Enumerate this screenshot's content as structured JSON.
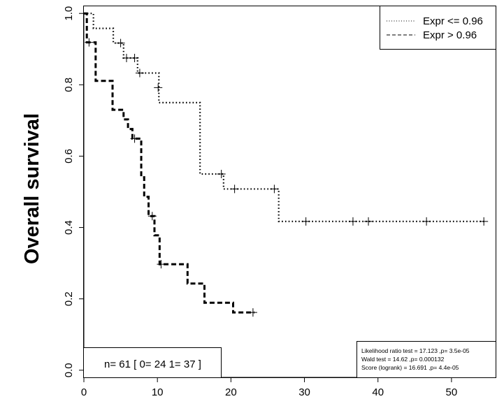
{
  "chart_data": {
    "type": "line",
    "title": "",
    "xlabel": "",
    "ylabel": "Overall survival",
    "xlim": [
      0,
      56
    ],
    "ylim": [
      -0.02,
      1.02
    ],
    "xticks": [
      0,
      10,
      20,
      30,
      40,
      50
    ],
    "yticks": [
      0.0,
      0.2,
      0.4,
      0.6,
      0.8,
      1.0
    ],
    "grid": false,
    "legend_position": "top-right",
    "series": [
      {
        "name": "Expr <= 0.96",
        "line_style": "dotted",
        "steps": [
          [
            0,
            1.0
          ],
          [
            1.3,
            0.958
          ],
          [
            4.0,
            0.917
          ],
          [
            5.4,
            0.875
          ],
          [
            7.3,
            0.833
          ],
          [
            10.2,
            0.75
          ],
          [
            15.8,
            0.55
          ],
          [
            19.0,
            0.508
          ],
          [
            26.5,
            0.417
          ],
          [
            54.5,
            0.417
          ]
        ],
        "censored": [
          [
            5.0,
            0.917
          ],
          [
            5.8,
            0.875
          ],
          [
            6.9,
            0.875
          ],
          [
            7.6,
            0.833
          ],
          [
            10.1,
            0.792
          ],
          [
            18.7,
            0.55
          ],
          [
            20.5,
            0.508
          ],
          [
            25.9,
            0.508
          ],
          [
            30.2,
            0.417
          ],
          [
            36.6,
            0.417
          ],
          [
            38.7,
            0.417
          ],
          [
            46.6,
            0.417
          ],
          [
            54.4,
            0.417
          ]
        ]
      },
      {
        "name": "Expr > 0.96",
        "line_style": "dashed",
        "steps": [
          [
            0,
            1.0
          ],
          [
            0.4,
            0.919
          ],
          [
            1.6,
            0.811
          ],
          [
            3.9,
            0.73
          ],
          [
            5.4,
            0.703
          ],
          [
            6.0,
            0.676
          ],
          [
            6.6,
            0.649
          ],
          [
            7.8,
            0.541
          ],
          [
            8.2,
            0.486
          ],
          [
            8.8,
            0.432
          ],
          [
            9.6,
            0.378
          ],
          [
            10.3,
            0.297
          ],
          [
            14.1,
            0.243
          ],
          [
            16.4,
            0.189
          ],
          [
            20.3,
            0.162
          ],
          [
            23.2,
            0.162
          ]
        ],
        "censored": [
          [
            0.7,
            0.919
          ],
          [
            6.9,
            0.649
          ],
          [
            9.3,
            0.432
          ],
          [
            10.5,
            0.297
          ],
          [
            23.0,
            0.162
          ]
        ]
      }
    ],
    "annotations": {
      "n_text": "n= 61 [ 0= 24 1= 37 ]",
      "stats": [
        "Likelihood ratio test = 17.123 ,p= 3.5e-05",
        "Wald test = 14.62 ,p= 0.000132",
        "Score (logrank) = 16.691 ,p= 4.4e-05"
      ]
    }
  }
}
